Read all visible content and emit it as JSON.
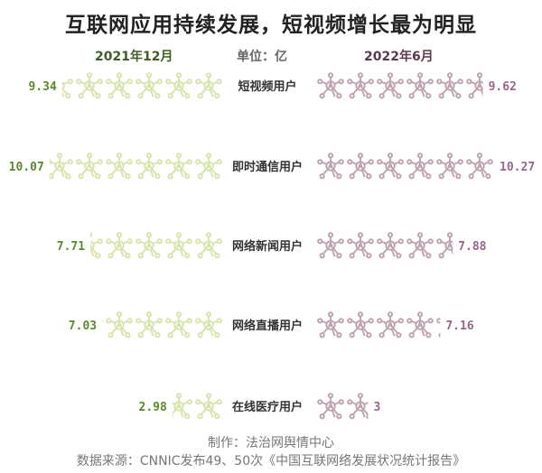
{
  "chart_data": {
    "type": "bar",
    "style": "pictograph",
    "title": "互联网应用持续发展，短视频增长最为明显",
    "unit": "单位：亿",
    "categories": [
      "短视频用户",
      "即时通信用户",
      "网络新闻用户",
      "网络直播用户",
      "在线医疗用户"
    ],
    "series": [
      {
        "name": "2021年12月",
        "values": [
          9.34,
          10.07,
          7.71,
          7.03,
          2.98
        ],
        "color": "#d6e4ac",
        "label_color": "#5b8a2e"
      },
      {
        "name": "2022年6月",
        "values": [
          9.62,
          10.27,
          7.88,
          7.16,
          3
        ],
        "color": "#bda2b0",
        "label_color": "#98668c"
      }
    ],
    "value_labels": {
      "left": [
        "9.34",
        "10.07",
        "7.71",
        "7.03",
        "2.98"
      ],
      "right": [
        "9.62",
        "10.27",
        "7.88",
        "7.16",
        "3"
      ]
    },
    "icon": "network-node-icon"
  },
  "footer": {
    "credit": "制作：法治网舆情中心",
    "source": "数据来源：CNNIC发布49、50次《中国互联网络发展状况统计报告》"
  }
}
